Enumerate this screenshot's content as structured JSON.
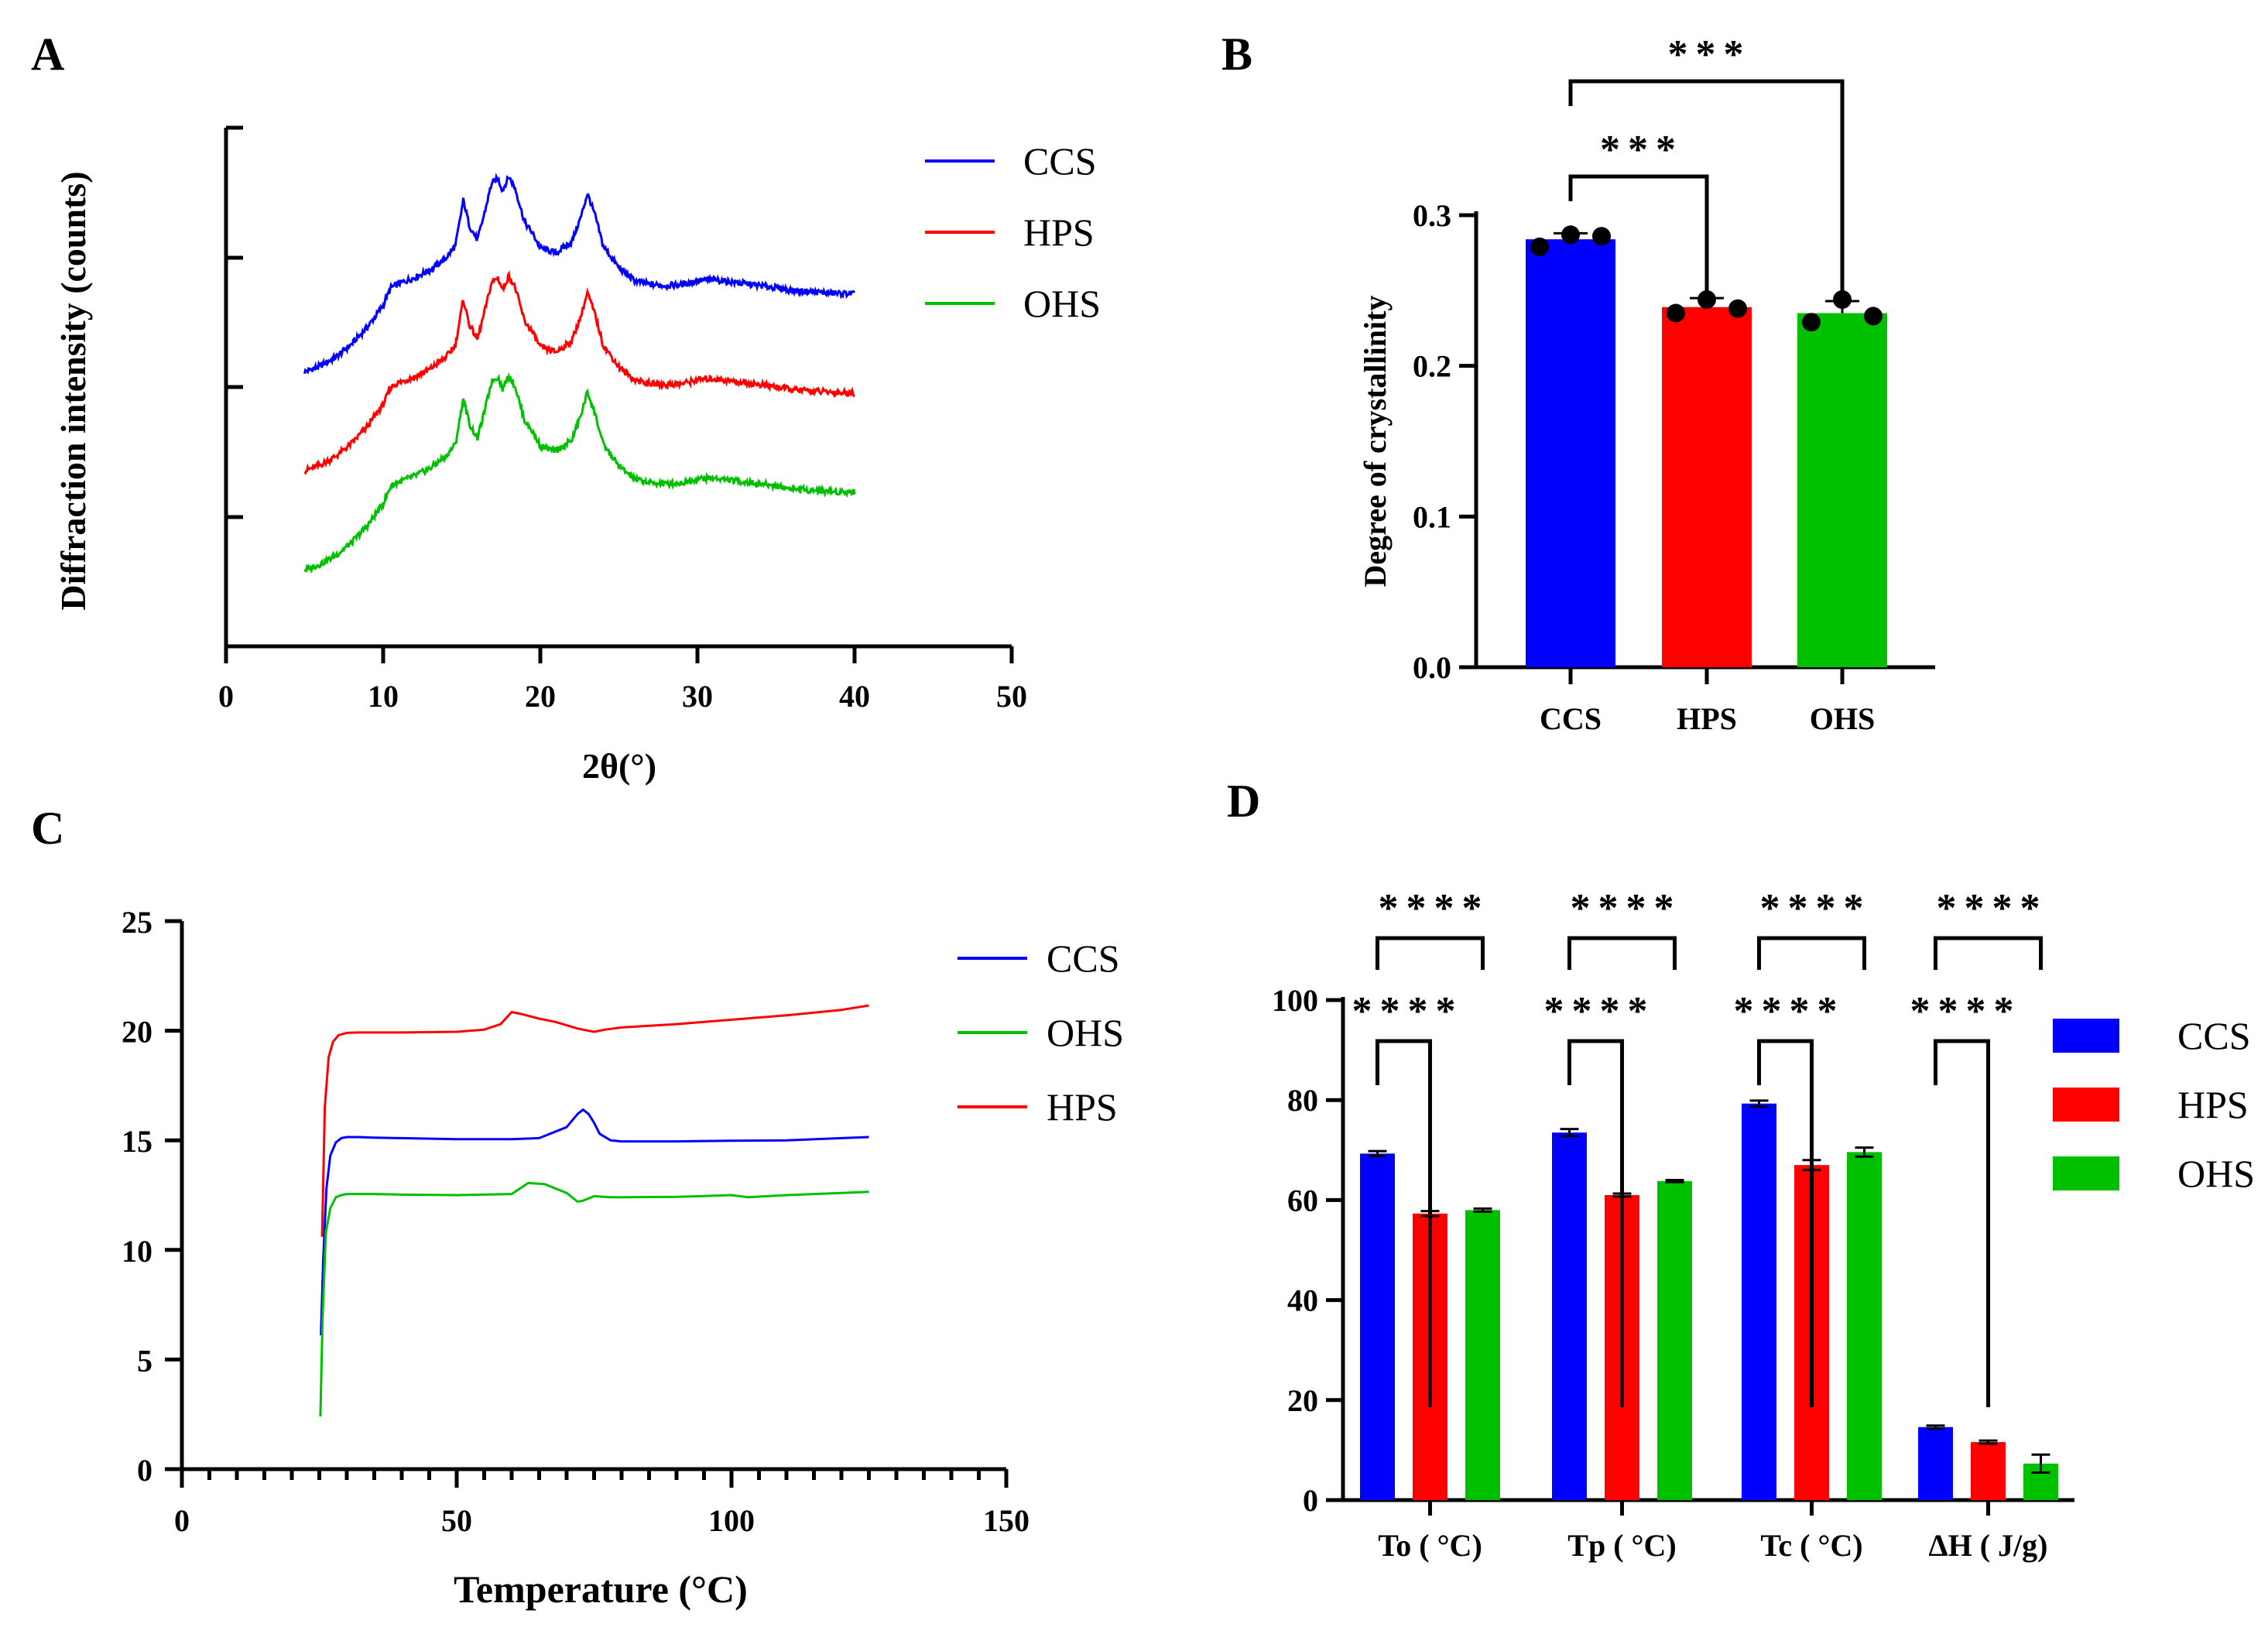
{
  "chart_data": [
    {
      "panel": "A",
      "type": "line",
      "title": "",
      "xlabel": "2θ(°)",
      "ylabel": "Diffraction intensity (counts)",
      "xlim": [
        0,
        50
      ],
      "x_ticks": [
        "0",
        "10",
        "20",
        "30",
        "40",
        "50"
      ],
      "y_ticks_labeled": false,
      "legend": [
        "CCS",
        "HPS",
        "OHS"
      ],
      "legend_position": "top-right",
      "series": [
        {
          "name": "CCS",
          "color": "#0000ff",
          "offset": 2.0,
          "x": [
            5,
            6,
            7,
            8,
            9,
            10,
            10.5,
            11,
            12,
            13,
            14,
            14.6,
            15.1,
            15.5,
            16,
            16.4,
            16.9,
            17.3,
            17.6,
            18.0,
            18.4,
            19,
            19.5,
            20,
            21,
            22,
            22.6,
            23.0,
            23.5,
            24,
            25,
            26,
            27,
            28,
            29,
            30,
            31,
            32,
            33,
            34,
            35,
            36,
            37,
            38,
            39,
            40
          ],
          "y": [
            0.05,
            0.11,
            0.2,
            0.33,
            0.5,
            0.72,
            0.9,
            0.94,
            1.0,
            1.08,
            1.2,
            1.32,
            1.78,
            1.52,
            1.38,
            1.62,
            1.95,
            2.0,
            1.88,
            2.02,
            1.9,
            1.56,
            1.45,
            1.3,
            1.25,
            1.36,
            1.62,
            1.85,
            1.62,
            1.32,
            1.1,
            0.97,
            0.93,
            0.92,
            0.93,
            0.97,
            0.98,
            0.96,
            0.94,
            0.92,
            0.9,
            0.87,
            0.86,
            0.85,
            0.84,
            0.84
          ]
        },
        {
          "name": "HPS",
          "color": "#ff0000",
          "offset": 1.0,
          "x": [
            5,
            6,
            7,
            8,
            9,
            10,
            10.5,
            11,
            12,
            13,
            14,
            14.6,
            15.1,
            15.5,
            16,
            16.4,
            16.9,
            17.3,
            17.6,
            18.0,
            18.4,
            19,
            19.5,
            20,
            21,
            22,
            22.6,
            23.0,
            23.5,
            24,
            25,
            26,
            27,
            28,
            29,
            30,
            31,
            32,
            33,
            34,
            35,
            36,
            37,
            38,
            39,
            40
          ],
          "y": [
            0.05,
            0.11,
            0.2,
            0.33,
            0.5,
            0.72,
            0.9,
            0.94,
            1.0,
            1.08,
            1.2,
            1.32,
            1.78,
            1.52,
            1.38,
            1.62,
            1.95,
            2.0,
            1.88,
            2.02,
            1.9,
            1.56,
            1.45,
            1.3,
            1.25,
            1.36,
            1.62,
            1.85,
            1.62,
            1.32,
            1.1,
            0.97,
            0.93,
            0.92,
            0.93,
            0.97,
            0.98,
            0.96,
            0.94,
            0.92,
            0.9,
            0.87,
            0.86,
            0.85,
            0.84,
            0.84
          ]
        },
        {
          "name": "OHS",
          "color": "#00c000",
          "offset": 0.0,
          "x": [
            5,
            6,
            7,
            8,
            9,
            10,
            10.5,
            11,
            12,
            13,
            14,
            14.6,
            15.1,
            15.5,
            16,
            16.4,
            16.9,
            17.3,
            17.6,
            18.0,
            18.4,
            19,
            19.5,
            20,
            21,
            22,
            22.6,
            23.0,
            23.5,
            24,
            25,
            26,
            27,
            28,
            29,
            30,
            31,
            32,
            33,
            34,
            35,
            36,
            37,
            38,
            39,
            40
          ],
          "y": [
            0.05,
            0.11,
            0.2,
            0.33,
            0.5,
            0.72,
            0.9,
            0.94,
            1.0,
            1.08,
            1.2,
            1.32,
            1.78,
            1.52,
            1.38,
            1.62,
            1.95,
            2.0,
            1.88,
            2.02,
            1.9,
            1.56,
            1.45,
            1.3,
            1.25,
            1.36,
            1.62,
            1.85,
            1.62,
            1.32,
            1.1,
            0.97,
            0.93,
            0.92,
            0.93,
            0.97,
            0.98,
            0.96,
            0.94,
            0.92,
            0.9,
            0.87,
            0.86,
            0.85,
            0.84,
            0.84
          ]
        }
      ]
    },
    {
      "panel": "B",
      "type": "bar",
      "title": "",
      "xlabel": "",
      "ylabel": "Degree of crystallinity",
      "ylim": [
        0,
        0.3
      ],
      "y_ticks": [
        "0.0",
        "0.1",
        "0.2",
        "0.3"
      ],
      "categories": [
        "CCS",
        "HPS",
        "OHS"
      ],
      "values": [
        0.284,
        0.239,
        0.235
      ],
      "errors": [
        0.004,
        0.006,
        0.008
      ],
      "colors": [
        "#0000ff",
        "#ff0000",
        "#00c000"
      ],
      "points": [
        [
          0.279,
          0.287,
          0.286
        ],
        [
          0.235,
          0.244,
          0.238
        ],
        [
          0.229,
          0.244,
          0.233
        ]
      ],
      "significance": [
        {
          "from": 0,
          "to": 2,
          "label": "***"
        },
        {
          "from": 0,
          "to": 1,
          "label": "***"
        }
      ]
    },
    {
      "panel": "C",
      "type": "line",
      "title": "",
      "xlabel": "Temperature (°C)",
      "ylabel": "",
      "xlim": [
        0,
        150
      ],
      "ylim": [
        0,
        25
      ],
      "x_ticks": [
        "0",
        "50",
        "100",
        "150"
      ],
      "y_ticks": [
        "0",
        "5",
        "10",
        "15",
        "20",
        "25"
      ],
      "legend": [
        "CCS",
        "OHS",
        "HPS"
      ],
      "legend_position": "top-right",
      "series": [
        {
          "name": "CCS",
          "color": "#0000ff",
          "x": [
            25.3,
            25.7,
            26.3,
            27,
            28,
            29,
            30,
            32,
            35,
            40,
            50,
            60,
            65,
            70,
            72,
            73,
            74,
            75,
            76,
            78,
            80,
            90,
            100,
            110,
            120,
            125
          ],
          "y": [
            6.1,
            9.5,
            12.8,
            14.3,
            14.9,
            15.1,
            15.15,
            15.15,
            15.12,
            15.1,
            15.05,
            15.05,
            15.1,
            15.6,
            16.2,
            16.4,
            16.2,
            15.8,
            15.3,
            15.0,
            14.95,
            14.95,
            14.98,
            15.0,
            15.1,
            15.15
          ]
        },
        {
          "name": "OHS",
          "color": "#00c000",
          "x": [
            25.2,
            25.6,
            26.2,
            27,
            28,
            29,
            30,
            32,
            35,
            40,
            50,
            60,
            63,
            66,
            70,
            72,
            73,
            75,
            78,
            80,
            90,
            100,
            103,
            110,
            120,
            125
          ],
          "y": [
            2.4,
            7.0,
            10.8,
            11.9,
            12.4,
            12.5,
            12.55,
            12.55,
            12.55,
            12.52,
            12.5,
            12.55,
            13.05,
            13.0,
            12.6,
            12.2,
            12.25,
            12.45,
            12.4,
            12.4,
            12.42,
            12.5,
            12.4,
            12.5,
            12.6,
            12.65
          ]
        },
        {
          "name": "HPS",
          "color": "#ff0000",
          "x": [
            25.5,
            26,
            26.7,
            27.5,
            28.5,
            30,
            32,
            35,
            40,
            50,
            55,
            58,
            60,
            62,
            65,
            68,
            72,
            75,
            77,
            80,
            90,
            100,
            110,
            120,
            125
          ],
          "y": [
            10.6,
            16.5,
            18.8,
            19.5,
            19.8,
            19.9,
            19.92,
            19.92,
            19.92,
            19.95,
            20.05,
            20.3,
            20.85,
            20.75,
            20.55,
            20.4,
            20.1,
            19.95,
            20.05,
            20.15,
            20.3,
            20.5,
            20.7,
            20.95,
            21.15
          ]
        }
      ]
    },
    {
      "panel": "D",
      "type": "bar",
      "title": "",
      "xlabel": "",
      "ylabel": "",
      "ylim": [
        0,
        100
      ],
      "y_ticks": [
        "0",
        "20",
        "40",
        "60",
        "80",
        "100"
      ],
      "categories": [
        "To ( °C)",
        "Tp ( °C)",
        "Tc ( °C)",
        "ΔH ( J/g)"
      ],
      "legend_position": "right",
      "series": [
        {
          "name": "CCS",
          "color": "#0000ff",
          "values": [
            69.3,
            73.5,
            79.3,
            14.6
          ],
          "errors": [
            0.5,
            0.7,
            0.6,
            0.3
          ]
        },
        {
          "name": "HPS",
          "color": "#ff0000",
          "values": [
            57.3,
            61.0,
            67.0,
            11.6
          ],
          "errors": [
            0.5,
            0.3,
            1.0,
            0.3
          ]
        },
        {
          "name": "OHS",
          "color": "#00c000",
          "values": [
            58.0,
            63.8,
            69.6,
            7.3
          ],
          "errors": [
            0.3,
            0.2,
            0.9,
            1.8
          ]
        }
      ],
      "significance": [
        {
          "group": 0,
          "from": "CCS",
          "to": "OHS",
          "label": "****"
        },
        {
          "group": 0,
          "from": "CCS",
          "to": "HPS",
          "label": "****"
        },
        {
          "group": 1,
          "from": "CCS",
          "to": "OHS",
          "label": "****"
        },
        {
          "group": 1,
          "from": "CCS",
          "to": "HPS",
          "label": "****"
        },
        {
          "group": 2,
          "from": "CCS",
          "to": "OHS",
          "label": "****"
        },
        {
          "group": 2,
          "from": "CCS",
          "to": "HPS",
          "label": "****"
        },
        {
          "group": 3,
          "from": "CCS",
          "to": "OHS",
          "label": "****"
        },
        {
          "group": 3,
          "from": "CCS",
          "to": "HPS",
          "label": "****"
        }
      ]
    }
  ]
}
